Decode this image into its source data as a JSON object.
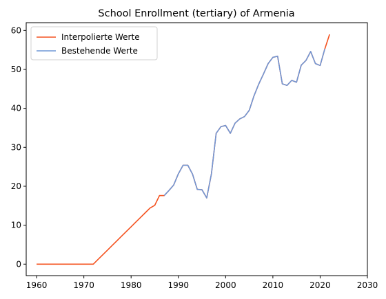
{
  "chart_data": {
    "type": "line",
    "title": "School Enrollment (tertiary) of Armenia",
    "xlabel": "",
    "ylabel": "",
    "xlim": [
      1957.8,
      2030
    ],
    "ylim": [
      -2.95,
      62
    ],
    "xticks": [
      1960,
      1970,
      1980,
      1990,
      2000,
      2010,
      2020,
      2030
    ],
    "yticks": [
      0,
      10,
      20,
      30,
      40,
      50,
      60
    ],
    "grid": false,
    "legend_position": "top-left",
    "series": [
      {
        "name": "Interpolierte Werte",
        "color": "#f4511e",
        "points": [
          [
            1960,
            0
          ],
          [
            1961,
            0
          ],
          [
            1962,
            0
          ],
          [
            1963,
            0
          ],
          [
            1964,
            0
          ],
          [
            1965,
            0
          ],
          [
            1966,
            0
          ],
          [
            1967,
            0
          ],
          [
            1968,
            0
          ],
          [
            1969,
            0
          ],
          [
            1970,
            0
          ],
          [
            1971,
            0
          ],
          [
            1972,
            0
          ],
          [
            1973,
            1.2
          ],
          [
            1974,
            2.4
          ],
          [
            1975,
            3.6
          ],
          [
            1976,
            4.8
          ],
          [
            1977,
            6.0
          ],
          [
            1978,
            7.2
          ],
          [
            1979,
            8.4
          ],
          [
            1980,
            9.6
          ],
          [
            1981,
            10.8
          ],
          [
            1982,
            12.0
          ],
          [
            1983,
            13.2
          ],
          [
            1984,
            14.4
          ],
          [
            1985,
            15.1
          ],
          [
            1986,
            17.6
          ],
          [
            1987,
            17.6
          ],
          [
            1988,
            18.9
          ],
          [
            1989,
            20.3
          ],
          [
            1990,
            23.2
          ],
          [
            1991,
            25.4
          ],
          [
            1992,
            25.4
          ],
          [
            1993,
            23.1
          ],
          [
            1994,
            19.2
          ],
          [
            1995,
            19.1
          ],
          [
            1996,
            17.0
          ],
          [
            1997,
            23.2
          ],
          [
            1998,
            33.6
          ],
          [
            1999,
            35.3
          ],
          [
            2000,
            35.6
          ],
          [
            2001,
            33.6
          ],
          [
            2002,
            36.2
          ],
          [
            2003,
            37.3
          ],
          [
            2004,
            37.9
          ],
          [
            2005,
            39.5
          ],
          [
            2006,
            43.2
          ],
          [
            2007,
            46.2
          ],
          [
            2008,
            48.8
          ],
          [
            2009,
            51.5
          ],
          [
            2010,
            53.1
          ],
          [
            2011,
            53.4
          ],
          [
            2012,
            46.3
          ],
          [
            2013,
            45.9
          ],
          [
            2014,
            47.2
          ],
          [
            2015,
            46.7
          ],
          [
            2016,
            51.1
          ],
          [
            2017,
            52.3
          ],
          [
            2018,
            54.6
          ],
          [
            2019,
            51.5
          ],
          [
            2020,
            51.0
          ],
          [
            2021,
            55.3
          ],
          [
            2022,
            59.0
          ]
        ]
      },
      {
        "name": "Bestehende Werte",
        "color": "#6f97d6",
        "points": [
          [
            1987,
            17.6
          ],
          [
            1988,
            18.9
          ],
          [
            1989,
            20.3
          ],
          [
            1990,
            23.2
          ],
          [
            1991,
            25.4
          ],
          [
            1992,
            25.4
          ],
          [
            1993,
            23.1
          ],
          [
            1994,
            19.2
          ],
          [
            1995,
            19.1
          ],
          [
            1996,
            17.0
          ],
          [
            1997,
            23.2
          ],
          [
            1998,
            33.6
          ],
          [
            1999,
            35.3
          ],
          [
            2000,
            35.6
          ],
          [
            2001,
            33.6
          ],
          [
            2002,
            36.2
          ],
          [
            2003,
            37.3
          ],
          [
            2004,
            37.9
          ],
          [
            2005,
            39.5
          ],
          [
            2006,
            43.2
          ],
          [
            2007,
            46.2
          ],
          [
            2008,
            48.8
          ],
          [
            2009,
            51.5
          ],
          [
            2010,
            53.1
          ],
          [
            2011,
            53.4
          ],
          [
            2012,
            46.3
          ],
          [
            2013,
            45.9
          ],
          [
            2014,
            47.2
          ],
          [
            2015,
            46.7
          ],
          [
            2016,
            51.1
          ],
          [
            2017,
            52.3
          ],
          [
            2018,
            54.6
          ],
          [
            2019,
            51.5
          ],
          [
            2020,
            51.0
          ],
          [
            2021,
            55.3
          ]
        ]
      }
    ]
  }
}
